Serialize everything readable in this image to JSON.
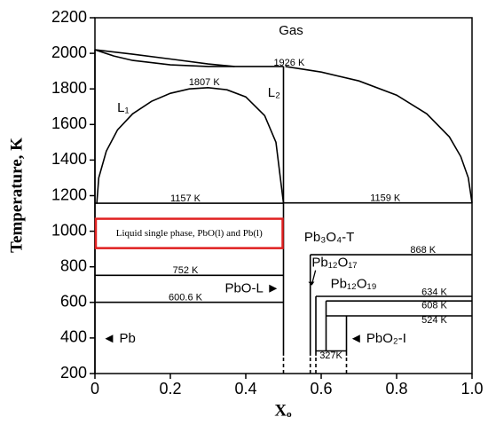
{
  "chart_data": {
    "type": "line",
    "xlabel": "Xₒ",
    "ylabel": "Temperature, K",
    "xlim": [
      0,
      1
    ],
    "ylim": [
      200,
      2200
    ],
    "xticks": [
      0,
      0.2,
      0.4,
      0.6,
      0.8,
      {
        "value": 1,
        "label": "1.0"
      }
    ],
    "yticks": [
      200,
      400,
      600,
      800,
      1000,
      1200,
      1400,
      1600,
      1800,
      2000,
      2200
    ],
    "grid": false,
    "series": [
      {
        "color": "#000000",
        "x": [
          0,
          0.1,
          0.2,
          0.3,
          0.37,
          0.5
        ],
        "values": [
          2020,
          1995,
          1968,
          1940,
          1926,
          1926
        ]
      },
      {
        "color": "#000000",
        "x": [
          0,
          0.05,
          0.1,
          0.2,
          0.3,
          0.37
        ],
        "values": [
          2020,
          1985,
          1960,
          1935,
          1926,
          1926
        ]
      },
      {
        "color": "#000000",
        "x": [
          0.005,
          0.01,
          0.03,
          0.06,
          0.1,
          0.15,
          0.2,
          0.25,
          0.3,
          0.35,
          0.4,
          0.45,
          0.48,
          0.5
        ],
        "values": [
          1157,
          1300,
          1450,
          1570,
          1660,
          1730,
          1775,
          1800,
          1807,
          1795,
          1755,
          1650,
          1500,
          1157
        ]
      },
      {
        "color": "#000000",
        "x": [
          0.505,
          0.6,
          0.7,
          0.8,
          0.88,
          0.94,
          0.97,
          0.99,
          1.0
        ],
        "values": [
          1926,
          1895,
          1845,
          1765,
          1660,
          1530,
          1420,
          1300,
          1159
        ]
      },
      {
        "color": "#000000",
        "x": [
          0,
          0
        ],
        "values": [
          200,
          2020
        ]
      },
      {
        "color": "#000000",
        "x": [
          0.5,
          0.5
        ],
        "values": [
          300,
          1926
        ]
      },
      {
        "color": "#000000",
        "x": [
          0.5,
          0.5
        ],
        "values": [
          200,
          300
        ],
        "dashed": true
      },
      {
        "color": "#000000",
        "x": [
          0,
          0.5
        ],
        "values": [
          1157,
          1157
        ]
      },
      {
        "color": "#000000",
        "x": [
          0.5,
          1.0
        ],
        "values": [
          1159,
          1159
        ]
      },
      {
        "color": "#000000",
        "x": [
          0.571,
          1.0
        ],
        "values": [
          868,
          868
        ]
      },
      {
        "color": "#000000",
        "x": [
          0,
          0.5
        ],
        "values": [
          752,
          752
        ]
      },
      {
        "color": "#000000",
        "x": [
          0,
          0.5
        ],
        "values": [
          600.6,
          600.6
        ]
      },
      {
        "color": "#000000",
        "x": [
          0.586,
          1.0
        ],
        "values": [
          634,
          634
        ]
      },
      {
        "color": "#000000",
        "x": [
          0.613,
          1.0
        ],
        "values": [
          608,
          608
        ]
      },
      {
        "color": "#000000",
        "x": [
          0.613,
          1.0
        ],
        "values": [
          524,
          524
        ]
      },
      {
        "color": "#000000",
        "x": [
          0.586,
          0.667
        ],
        "values": [
          327,
          327
        ]
      },
      {
        "color": "#000000",
        "x": [
          0.571,
          0.571
        ],
        "values": [
          300,
          868
        ]
      },
      {
        "color": "#000000",
        "x": [
          0.571,
          0.571
        ],
        "values": [
          200,
          300
        ],
        "dashed": true
      },
      {
        "color": "#000000",
        "x": [
          0.586,
          0.586
        ],
        "values": [
          300,
          634
        ]
      },
      {
        "color": "#000000",
        "x": [
          0.586,
          0.586
        ],
        "values": [
          200,
          300
        ],
        "dashed": true
      },
      {
        "color": "#000000",
        "x": [
          0.613,
          0.613
        ],
        "values": [
          327,
          608
        ]
      },
      {
        "color": "#000000",
        "x": [
          0.667,
          0.667
        ],
        "values": [
          300,
          524
        ]
      },
      {
        "color": "#000000",
        "x": [
          0.667,
          0.667
        ],
        "values": [
          200,
          300
        ],
        "dashed": true
      }
    ],
    "annotations": [
      "Gas",
      "1926 K",
      "1807 K",
      "L₁",
      "L₂",
      "1157 K",
      "1159 K",
      "Liquid  single phase, PbO(l) and Pb(l)",
      "Pb₃O₄-T",
      "868 K",
      "752 K",
      "Pb₁₂O₁₇",
      "Pb₁₂O₁₉",
      "634 K",
      "608 K",
      "524 K",
      "PbO-L ►",
      "600.6 K",
      "◄ Pb",
      "◄ PbO₂-I",
      "327K"
    ]
  }
}
